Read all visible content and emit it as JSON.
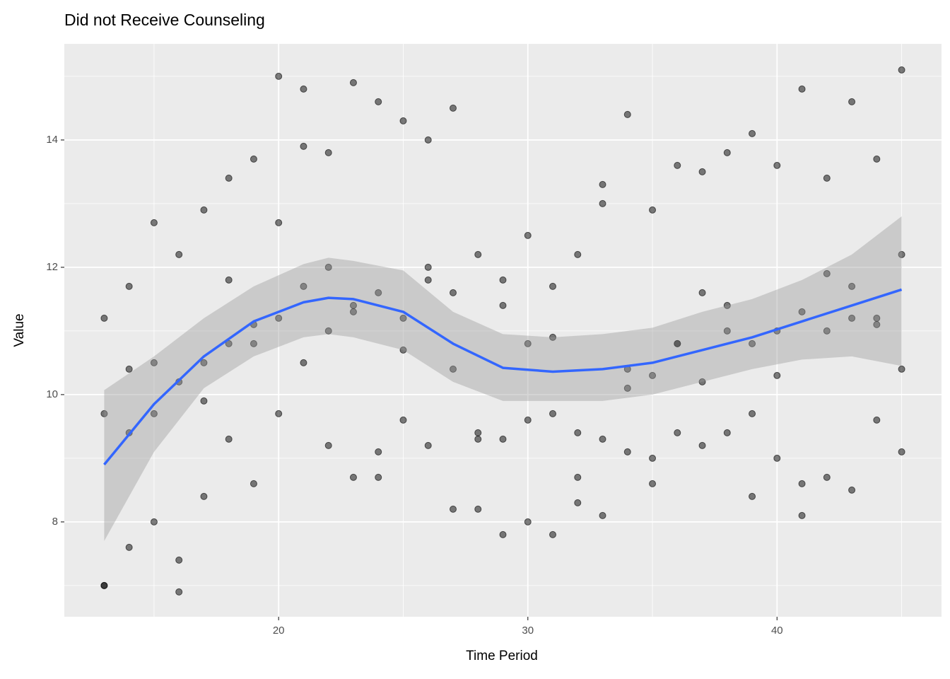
{
  "chart_data": {
    "type": "scatter",
    "title": "Did not Receive Counseling",
    "x_label": "Time Period",
    "y_label": "Value",
    "xlim": [
      11.4,
      46.6
    ],
    "ylim": [
      6.51,
      15.51
    ],
    "xticks": [
      20,
      30,
      40
    ],
    "yticks": [
      8,
      10,
      12,
      14
    ],
    "grid": true,
    "series": [
      {
        "color": "#000000",
        "x": [
          13,
          13,
          13,
          13,
          14,
          14,
          14,
          14,
          15,
          15,
          15,
          15,
          16,
          16,
          16,
          16,
          17,
          17,
          17,
          17,
          18,
          18,
          18,
          18,
          19,
          19,
          19,
          19,
          20,
          20,
          20,
          20,
          21,
          21,
          21,
          21,
          22,
          22,
          22,
          22,
          23,
          23,
          23,
          23,
          24,
          24,
          24,
          24,
          25,
          25,
          25,
          25,
          26,
          26,
          26,
          26,
          27,
          27,
          27,
          27,
          28,
          28,
          28,
          28,
          29,
          29,
          29,
          29,
          30,
          30,
          30,
          30,
          31,
          31,
          31,
          31,
          32,
          32,
          32,
          32,
          33,
          33,
          33,
          33,
          34,
          34,
          34,
          34,
          35,
          35,
          35,
          35,
          36,
          36,
          36,
          36,
          37,
          37,
          37,
          37,
          38,
          38,
          38,
          38,
          39,
          39,
          39,
          39,
          40,
          40,
          40,
          40,
          41,
          41,
          41,
          41,
          42,
          42,
          42,
          42,
          43,
          43,
          43,
          43,
          44,
          44,
          44,
          44,
          45,
          45,
          45,
          45
        ],
        "values": [
          11.2,
          9.7,
          7.0,
          7.0,
          11.7,
          10.4,
          9.4,
          7.6,
          12.7,
          10.5,
          9.7,
          8.0,
          12.2,
          10.2,
          7.4,
          6.9,
          12.9,
          10.5,
          9.9,
          8.4,
          13.4,
          11.8,
          10.8,
          9.3,
          13.7,
          11.1,
          10.8,
          8.6,
          15.0,
          12.7,
          11.2,
          9.7,
          14.8,
          13.9,
          11.7,
          10.5,
          13.8,
          12.0,
          11.0,
          9.2,
          14.9,
          11.4,
          11.3,
          8.7,
          14.6,
          11.6,
          9.1,
          8.7,
          14.3,
          11.2,
          10.7,
          9.6,
          14.0,
          12.0,
          11.8,
          9.2,
          14.5,
          11.6,
          10.4,
          8.2,
          12.2,
          9.4,
          9.3,
          8.2,
          11.8,
          11.4,
          9.3,
          7.8,
          12.5,
          10.8,
          9.6,
          8.0,
          11.7,
          10.9,
          9.7,
          7.8,
          12.2,
          9.4,
          8.7,
          8.3,
          13.3,
          13.0,
          9.3,
          8.1,
          14.4,
          10.4,
          10.1,
          9.1,
          12.9,
          10.3,
          9.0,
          8.6,
          13.6,
          10.8,
          10.8,
          9.4,
          13.5,
          11.6,
          10.2,
          9.2,
          13.8,
          11.4,
          11.0,
          9.4,
          14.1,
          10.8,
          9.7,
          8.4,
          13.6,
          11.0,
          10.3,
          9.0,
          14.8,
          11.3,
          8.6,
          8.1,
          13.4,
          11.9,
          11.0,
          8.7,
          14.6,
          11.7,
          11.2,
          8.5,
          13.7,
          11.2,
          11.1,
          9.6,
          15.1,
          12.2,
          10.4,
          9.1
        ]
      }
    ],
    "smooth": {
      "color": "#3366ff",
      "band_color": "#999999",
      "x": [
        13,
        15,
        17,
        19,
        21,
        22,
        23,
        25,
        27,
        29,
        31,
        33,
        35,
        37,
        39,
        41,
        43,
        45
      ],
      "values": [
        8.9,
        9.85,
        10.6,
        11.15,
        11.45,
        11.52,
        11.5,
        11.3,
        10.8,
        10.42,
        10.36,
        10.4,
        10.5,
        10.7,
        10.9,
        11.15,
        11.4,
        11.65
      ],
      "lower": [
        7.7,
        9.1,
        10.1,
        10.6,
        10.9,
        10.95,
        10.9,
        10.7,
        10.2,
        9.9,
        9.9,
        9.9,
        10.0,
        10.2,
        10.4,
        10.55,
        10.6,
        10.45
      ],
      "upper": [
        10.07,
        10.6,
        11.2,
        11.7,
        12.05,
        12.15,
        12.1,
        11.95,
        11.3,
        10.95,
        10.9,
        10.95,
        11.05,
        11.3,
        11.5,
        11.8,
        12.2,
        12.8
      ]
    }
  }
}
